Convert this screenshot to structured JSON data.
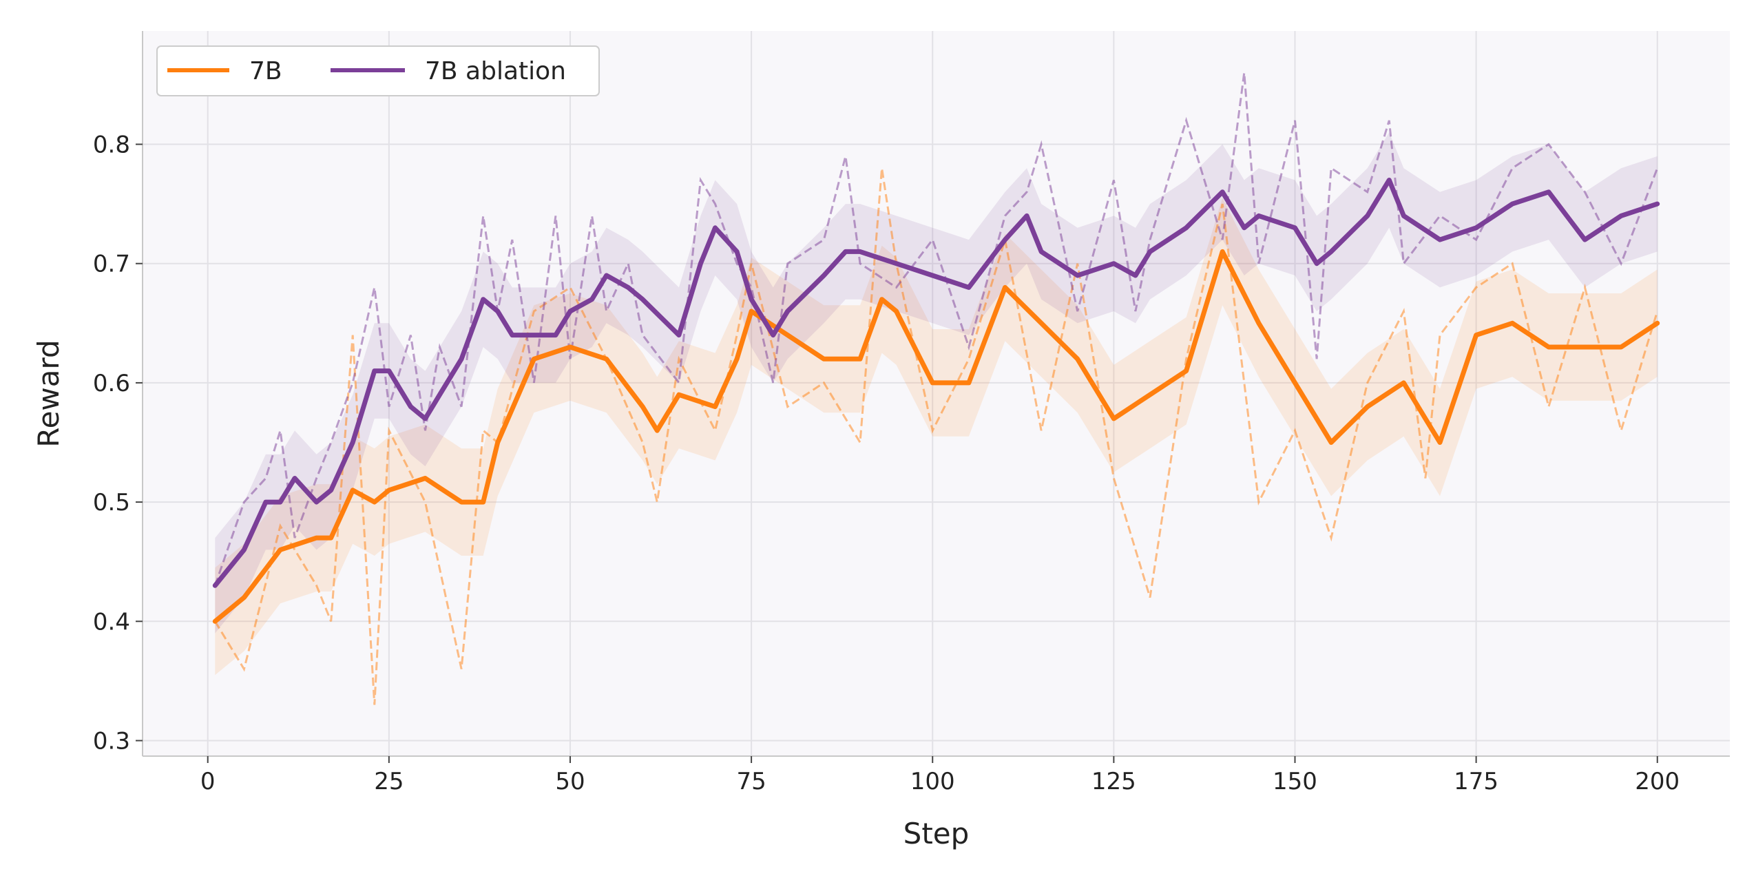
{
  "chart_data": {
    "type": "line",
    "xlabel": "Step",
    "ylabel": "Reward",
    "xlim": [
      -9,
      210
    ],
    "ylim": [
      0.287,
      0.895
    ],
    "xticks": [
      0,
      25,
      50,
      75,
      100,
      125,
      150,
      175,
      200
    ],
    "yticks": [
      0.3,
      0.4,
      0.5,
      0.6,
      0.7,
      0.8
    ],
    "grid": true,
    "legend_position": "top-left",
    "series": [
      {
        "name": "7B",
        "color": "#ff7f0e",
        "x": [
          1,
          5,
          10,
          15,
          17,
          20,
          23,
          25,
          30,
          35,
          38,
          40,
          45,
          50,
          55,
          60,
          62,
          65,
          70,
          73,
          75,
          80,
          85,
          90,
          93,
          95,
          100,
          105,
          110,
          115,
          120,
          125,
          130,
          135,
          140,
          145,
          150,
          155,
          160,
          165,
          168,
          170,
          175,
          180,
          185,
          190,
          195,
          200
        ],
        "smoothed": [
          0.4,
          0.42,
          0.46,
          0.47,
          0.47,
          0.51,
          0.5,
          0.51,
          0.52,
          0.5,
          0.5,
          0.55,
          0.62,
          0.63,
          0.62,
          0.58,
          0.56,
          0.59,
          0.58,
          0.62,
          0.66,
          0.64,
          0.62,
          0.62,
          0.67,
          0.66,
          0.6,
          0.6,
          0.68,
          0.65,
          0.62,
          0.57,
          0.59,
          0.61,
          0.71,
          0.65,
          0.6,
          0.55,
          0.58,
          0.6,
          0.57,
          0.55,
          0.64,
          0.65,
          0.63,
          0.63,
          0.63,
          0.65
        ],
        "raw": [
          0.4,
          0.36,
          0.48,
          0.43,
          0.4,
          0.64,
          0.33,
          0.56,
          0.5,
          0.36,
          0.56,
          0.55,
          0.66,
          0.68,
          0.62,
          0.55,
          0.5,
          0.62,
          0.56,
          0.64,
          0.7,
          0.58,
          0.6,
          0.55,
          0.78,
          0.7,
          0.56,
          0.62,
          0.72,
          0.56,
          0.7,
          0.52,
          0.42,
          0.62,
          0.75,
          0.5,
          0.56,
          0.47,
          0.6,
          0.66,
          0.52,
          0.64,
          0.68,
          0.7,
          0.58,
          0.68,
          0.56,
          0.66
        ],
        "band_halfwidth": 0.045
      },
      {
        "name": "7B ablation",
        "color": "#7b3f98",
        "x": [
          1,
          5,
          8,
          10,
          12,
          15,
          17,
          20,
          23,
          25,
          28,
          30,
          32,
          35,
          38,
          40,
          42,
          45,
          48,
          50,
          53,
          55,
          58,
          60,
          65,
          68,
          70,
          73,
          75,
          78,
          80,
          85,
          88,
          90,
          95,
          100,
          105,
          110,
          113,
          115,
          120,
          125,
          128,
          130,
          135,
          140,
          143,
          145,
          150,
          153,
          155,
          160,
          163,
          165,
          170,
          175,
          180,
          185,
          190,
          195,
          200
        ],
        "smoothed": [
          0.43,
          0.46,
          0.5,
          0.5,
          0.52,
          0.5,
          0.51,
          0.55,
          0.61,
          0.61,
          0.58,
          0.57,
          0.59,
          0.62,
          0.67,
          0.66,
          0.64,
          0.64,
          0.64,
          0.66,
          0.67,
          0.69,
          0.68,
          0.67,
          0.64,
          0.7,
          0.73,
          0.71,
          0.67,
          0.64,
          0.66,
          0.69,
          0.71,
          0.71,
          0.7,
          0.69,
          0.68,
          0.72,
          0.74,
          0.71,
          0.69,
          0.7,
          0.69,
          0.71,
          0.73,
          0.76,
          0.73,
          0.74,
          0.73,
          0.7,
          0.71,
          0.74,
          0.77,
          0.74,
          0.72,
          0.73,
          0.75,
          0.76,
          0.72,
          0.74,
          0.75
        ],
        "raw": [
          0.43,
          0.5,
          0.52,
          0.56,
          0.47,
          0.52,
          0.55,
          0.6,
          0.68,
          0.58,
          0.64,
          0.56,
          0.63,
          0.58,
          0.74,
          0.66,
          0.72,
          0.6,
          0.74,
          0.62,
          0.74,
          0.66,
          0.7,
          0.64,
          0.6,
          0.77,
          0.75,
          0.7,
          0.68,
          0.6,
          0.7,
          0.72,
          0.79,
          0.7,
          0.68,
          0.72,
          0.63,
          0.74,
          0.76,
          0.8,
          0.66,
          0.77,
          0.66,
          0.72,
          0.82,
          0.72,
          0.86,
          0.7,
          0.82,
          0.62,
          0.78,
          0.76,
          0.82,
          0.7,
          0.74,
          0.72,
          0.78,
          0.8,
          0.76,
          0.7,
          0.78
        ],
        "band_halfwidth": 0.04
      }
    ]
  }
}
